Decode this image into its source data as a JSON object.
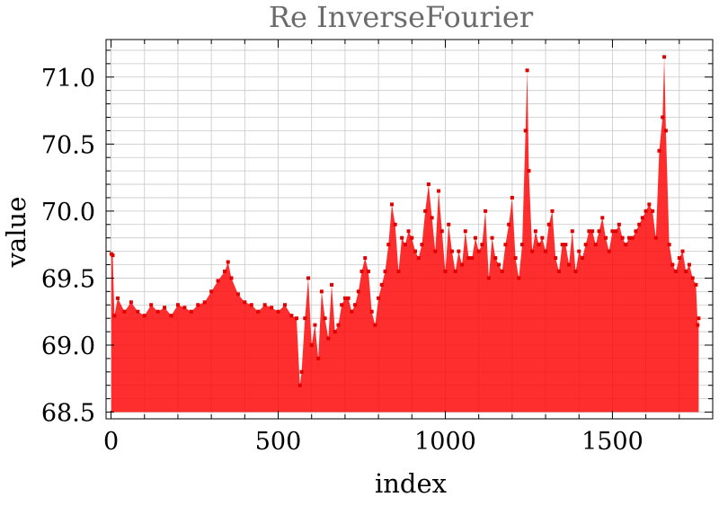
{
  "chart_data": {
    "type": "area",
    "title": "Re InverseFourier",
    "xlabel": "index",
    "ylabel": "value",
    "xlim": [
      -15,
      1800
    ],
    "ylim": [
      68.45,
      71.28
    ],
    "baseline": 68.5,
    "xticks": [
      0,
      500,
      1000,
      1500
    ],
    "yticks": [
      68.5,
      69.0,
      69.5,
      70.0,
      70.5,
      71.0
    ],
    "ytick_labels": [
      "68.5",
      "69.0",
      "69.5",
      "70.0",
      "70.5",
      "71.0"
    ],
    "grid": true,
    "color": "#ff0000",
    "series": [
      {
        "x": [
          1,
          5,
          10,
          20,
          40,
          60,
          80,
          100,
          120,
          140,
          160,
          180,
          200,
          220,
          240,
          260,
          280,
          300,
          320,
          340,
          350,
          360,
          380,
          400,
          420,
          440,
          460,
          480,
          500,
          520,
          540,
          555,
          565,
          570,
          580,
          590,
          600,
          610,
          620,
          630,
          640,
          650,
          660,
          670,
          680,
          690,
          700,
          710,
          720,
          730,
          740,
          750,
          760,
          770,
          780,
          790,
          800,
          810,
          820,
          830,
          840,
          850,
          860,
          870,
          880,
          890,
          900,
          910,
          920,
          930,
          940,
          950,
          960,
          970,
          980,
          990,
          1000,
          1010,
          1020,
          1030,
          1040,
          1050,
          1060,
          1070,
          1080,
          1090,
          1100,
          1110,
          1120,
          1130,
          1140,
          1150,
          1160,
          1170,
          1180,
          1190,
          1200,
          1210,
          1220,
          1230,
          1240,
          1245,
          1250,
          1260,
          1270,
          1280,
          1290,
          1300,
          1310,
          1320,
          1330,
          1340,
          1350,
          1360,
          1370,
          1380,
          1390,
          1400,
          1410,
          1420,
          1430,
          1440,
          1450,
          1460,
          1470,
          1480,
          1490,
          1500,
          1510,
          1520,
          1530,
          1540,
          1550,
          1560,
          1570,
          1580,
          1590,
          1600,
          1610,
          1620,
          1630,
          1640,
          1650,
          1655,
          1660,
          1670,
          1680,
          1690,
          1700,
          1710,
          1720,
          1730,
          1740,
          1750,
          1755,
          1758
        ],
        "y": [
          69.68,
          69.67,
          69.22,
          69.35,
          69.25,
          69.32,
          69.25,
          69.22,
          69.3,
          69.25,
          69.28,
          69.22,
          69.3,
          69.28,
          69.25,
          69.3,
          69.32,
          69.4,
          69.48,
          69.55,
          69.62,
          69.5,
          69.38,
          69.32,
          69.3,
          69.25,
          69.3,
          69.28,
          69.25,
          69.3,
          69.22,
          69.2,
          68.7,
          68.8,
          69.2,
          69.5,
          69.0,
          69.15,
          68.9,
          69.4,
          69.2,
          69.05,
          69.45,
          69.1,
          69.15,
          69.3,
          69.35,
          69.35,
          69.25,
          69.3,
          69.4,
          69.55,
          69.65,
          69.55,
          69.25,
          69.15,
          69.35,
          69.45,
          69.55,
          69.75,
          70.05,
          69.9,
          69.55,
          69.8,
          69.75,
          69.85,
          69.8,
          69.7,
          69.65,
          69.75,
          70.0,
          70.2,
          69.95,
          69.7,
          70.15,
          69.85,
          69.55,
          69.9,
          69.7,
          69.55,
          69.7,
          69.6,
          69.85,
          69.65,
          69.65,
          69.8,
          69.7,
          69.75,
          70.0,
          69.5,
          69.8,
          69.65,
          69.6,
          69.55,
          69.75,
          69.9,
          70.1,
          69.65,
          69.5,
          69.75,
          70.6,
          71.05,
          70.3,
          69.7,
          69.85,
          69.75,
          69.8,
          69.7,
          69.9,
          70.0,
          69.65,
          69.55,
          69.75,
          69.75,
          69.6,
          69.85,
          69.55,
          69.7,
          69.65,
          69.75,
          69.85,
          69.85,
          69.75,
          69.85,
          69.95,
          69.8,
          69.7,
          69.85,
          69.85,
          69.9,
          69.8,
          69.75,
          69.8,
          69.8,
          69.85,
          69.9,
          69.95,
          70.0,
          70.05,
          70.0,
          69.8,
          70.45,
          70.7,
          71.15,
          70.6,
          69.75,
          69.6,
          69.55,
          69.65,
          69.7,
          69.55,
          69.6,
          69.5,
          69.45,
          69.15,
          69.2
        ]
      }
    ]
  }
}
